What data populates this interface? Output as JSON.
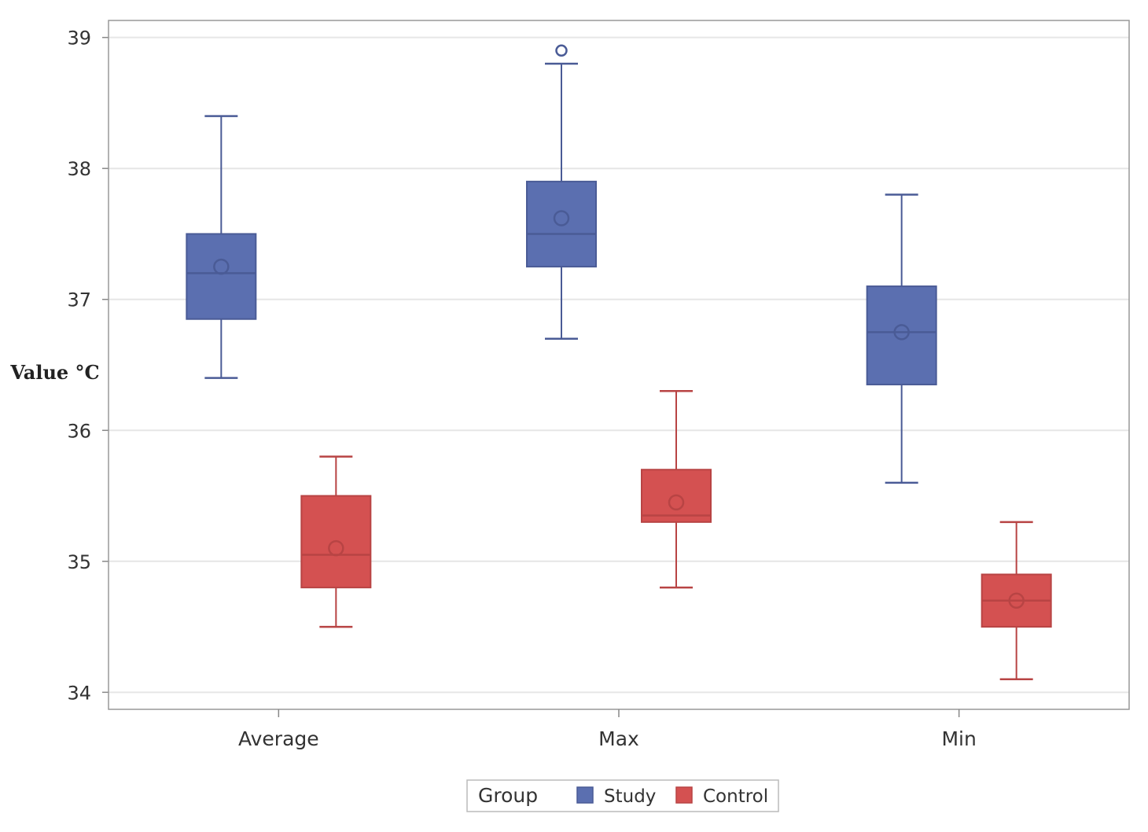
{
  "chart_data": {
    "type": "boxplot",
    "title": "",
    "xlabel": "",
    "ylabel": "Value °C",
    "ylim": [
      34,
      39
    ],
    "yticks": [
      34,
      35,
      36,
      37,
      38,
      39
    ],
    "grid": true,
    "categories": [
      "Average",
      "Max",
      "Min"
    ],
    "legend": {
      "title": "Group",
      "position": "bottom-center"
    },
    "series": [
      {
        "name": "Study",
        "color": "#5b6fb0",
        "edge_color": "#4a5b96",
        "boxes": [
          {
            "category": "Average",
            "whisker_low": 36.4,
            "q1": 36.85,
            "median": 37.2,
            "q3": 37.5,
            "whisker_high": 38.4,
            "mean": 37.25,
            "outliers": []
          },
          {
            "category": "Max",
            "whisker_low": 36.7,
            "q1": 37.25,
            "median": 37.5,
            "q3": 37.9,
            "whisker_high": 38.8,
            "mean": 37.62,
            "outliers": [
              38.9
            ]
          },
          {
            "category": "Min",
            "whisker_low": 35.6,
            "q1": 36.35,
            "median": 36.75,
            "q3": 37.1,
            "whisker_high": 37.8,
            "mean": 36.75,
            "outliers": []
          }
        ]
      },
      {
        "name": "Control",
        "color": "#d45151",
        "edge_color": "#b84444",
        "boxes": [
          {
            "category": "Average",
            "whisker_low": 34.5,
            "q1": 34.8,
            "median": 35.05,
            "q3": 35.5,
            "whisker_high": 35.8,
            "mean": 35.1,
            "outliers": []
          },
          {
            "category": "Max",
            "whisker_low": 34.8,
            "q1": 35.3,
            "median": 35.35,
            "q3": 35.7,
            "whisker_high": 36.3,
            "mean": 35.45,
            "outliers": []
          },
          {
            "category": "Min",
            "whisker_low": 34.1,
            "q1": 34.5,
            "median": 34.7,
            "q3": 34.9,
            "whisker_high": 35.3,
            "mean": 34.7,
            "outliers": []
          }
        ]
      }
    ]
  }
}
